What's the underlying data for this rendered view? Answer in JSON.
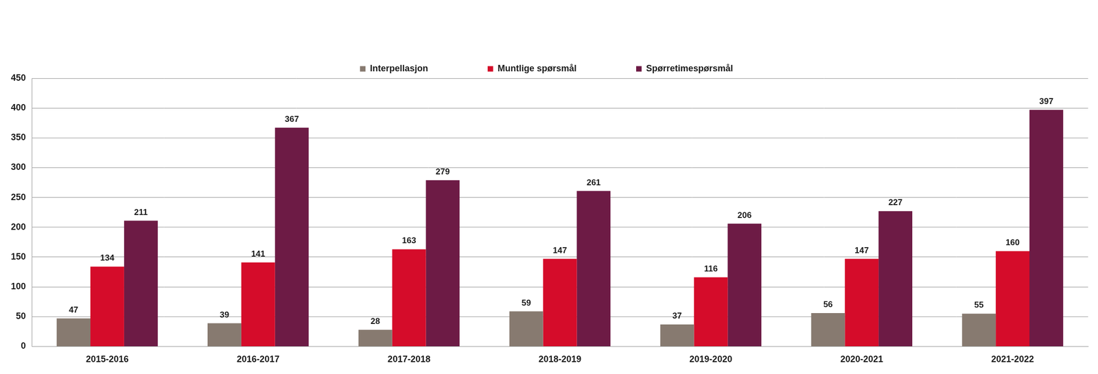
{
  "chart_data": {
    "type": "bar",
    "categories": [
      "2015-2016",
      "2016-2017",
      "2017-2018",
      "2018-2019",
      "2019-2020",
      "2020-2021",
      "2021-2022"
    ],
    "series": [
      {
        "name": "Interpellasjon",
        "color": "#877a70",
        "values": [
          47,
          39,
          28,
          59,
          37,
          56,
          55
        ]
      },
      {
        "name": "Muntlige spørsmål",
        "color": "#d50c2a",
        "values": [
          134,
          141,
          163,
          147,
          116,
          147,
          160
        ]
      },
      {
        "name": "Spørretimespørsmål",
        "color": "#6d1b45",
        "values": [
          211,
          367,
          279,
          261,
          206,
          227,
          397
        ]
      }
    ],
    "ylim": [
      0,
      450
    ],
    "yticks": [
      0,
      50,
      100,
      150,
      200,
      250,
      300,
      350,
      400,
      450
    ],
    "grid": true,
    "legend": "top",
    "data_labels": true
  }
}
